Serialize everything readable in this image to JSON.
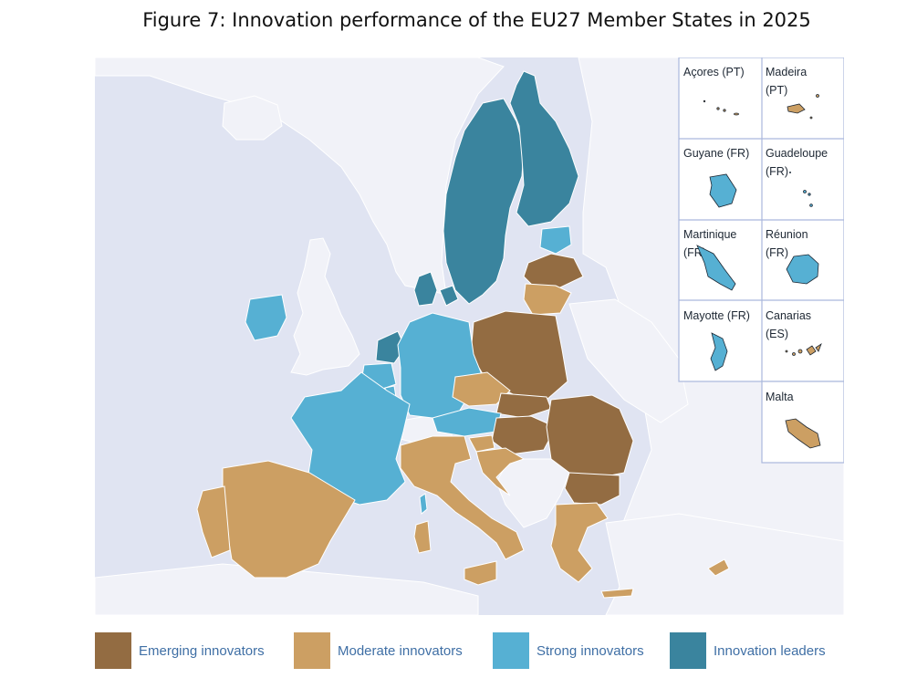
{
  "title": "Figure 7: Innovation performance of the EU27 Member States in 2025",
  "colors": {
    "sea": "#e0e4f2",
    "background": "#f1f2f8",
    "non_eu_land": "#f1f2f8",
    "border": "#ffffff",
    "inset_border": "#aab8dd",
    "emerging": "#936c42",
    "moderate": "#cc9f63",
    "strong": "#56b0d3",
    "leaders": "#3a849e"
  },
  "legend": [
    {
      "label": "Emerging innovators",
      "color": "#936c42"
    },
    {
      "label": "Moderate innovators",
      "color": "#cc9f63"
    },
    {
      "label": "Strong innovators",
      "color": "#56b0d3"
    },
    {
      "label": "Innovation leaders",
      "color": "#3a849e"
    }
  ],
  "insets": [
    {
      "label_line1": "Açores (PT)",
      "label_line2": "",
      "category": "moderate"
    },
    {
      "label_line1": "Madeira",
      "label_line2": "(PT)",
      "category": "moderate"
    },
    {
      "label_line1": "Guyane (FR)",
      "label_line2": "",
      "category": "strong"
    },
    {
      "label_line1": "Guadeloupe",
      "label_line2": "(FR)",
      "category": "strong"
    },
    {
      "label_line1": "Martinique",
      "label_line2": "(FR)",
      "category": "strong"
    },
    {
      "label_line1": "Réunion",
      "label_line2": "(FR)",
      "category": "strong"
    },
    {
      "label_line1": "Mayotte (FR)",
      "label_line2": "",
      "category": "strong"
    },
    {
      "label_line1": "Canarias",
      "label_line2": "(ES)",
      "category": "moderate"
    },
    {
      "label_line1": "Malta",
      "label_line2": "",
      "category": "moderate"
    }
  ],
  "countries": [
    {
      "name": "Sweden",
      "category": "leaders"
    },
    {
      "name": "Finland",
      "category": "leaders"
    },
    {
      "name": "Denmark",
      "category": "leaders"
    },
    {
      "name": "Netherlands",
      "category": "leaders"
    },
    {
      "name": "Ireland",
      "category": "strong"
    },
    {
      "name": "Germany",
      "category": "strong"
    },
    {
      "name": "France",
      "category": "strong"
    },
    {
      "name": "Belgium",
      "category": "strong"
    },
    {
      "name": "Austria",
      "category": "strong"
    },
    {
      "name": "Estonia",
      "category": "strong"
    },
    {
      "name": "Luxembourg",
      "category": "strong"
    },
    {
      "name": "Cyprus",
      "category": "moderate"
    },
    {
      "name": "Spain",
      "category": "moderate"
    },
    {
      "name": "Portugal",
      "category": "moderate"
    },
    {
      "name": "Italy",
      "category": "moderate"
    },
    {
      "name": "Czechia",
      "category": "moderate"
    },
    {
      "name": "Slovenia",
      "category": "moderate"
    },
    {
      "name": "Lithuania",
      "category": "moderate"
    },
    {
      "name": "Greece",
      "category": "moderate"
    },
    {
      "name": "Croatia",
      "category": "moderate"
    },
    {
      "name": "Malta",
      "category": "moderate"
    },
    {
      "name": "Poland",
      "category": "emerging"
    },
    {
      "name": "Slovakia",
      "category": "emerging"
    },
    {
      "name": "Hungary",
      "category": "emerging"
    },
    {
      "name": "Romania",
      "category": "emerging"
    },
    {
      "name": "Bulgaria",
      "category": "emerging"
    },
    {
      "name": "Latvia",
      "category": "emerging"
    }
  ]
}
